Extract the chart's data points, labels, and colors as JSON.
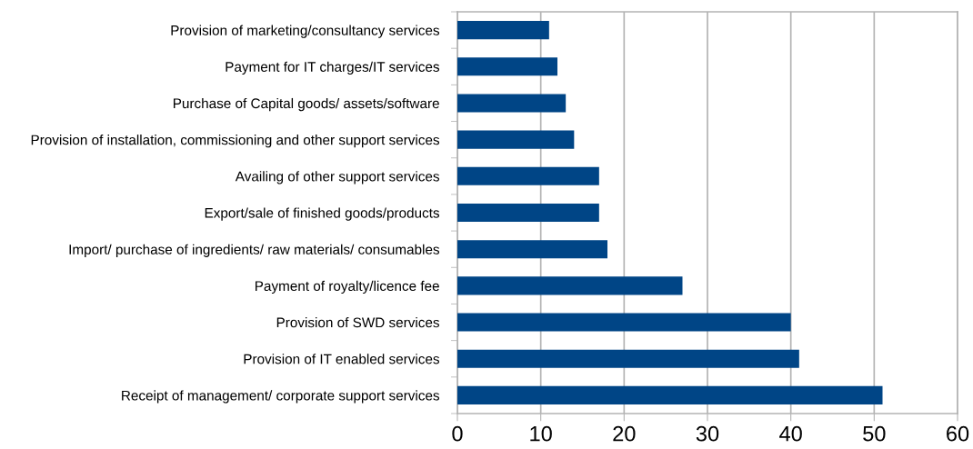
{
  "chart_data": {
    "type": "bar",
    "orientation": "horizontal",
    "categories": [
      "Provision of marketing/consultancy services",
      "Payment for IT charges/IT services",
      "Purchase of Capital goods/ assets/software",
      "Provision of installation, commissioning and other support services",
      "Availing of other support services",
      "Export/sale of finished goods/products",
      "Import/ purchase of ingredients/ raw materials/ consumables",
      "Payment of royalty/licence fee",
      "Provision of SWD services",
      "Provision of IT enabled services",
      "Receipt of management/ corporate support services"
    ],
    "values": [
      11,
      12,
      13,
      14,
      17,
      17,
      18,
      27,
      40,
      41,
      51
    ],
    "color": "#004586",
    "xlim": [
      0,
      60
    ],
    "xticks": [
      0,
      10,
      20,
      30,
      40,
      50,
      60
    ],
    "grid": "x",
    "legend": false
  }
}
